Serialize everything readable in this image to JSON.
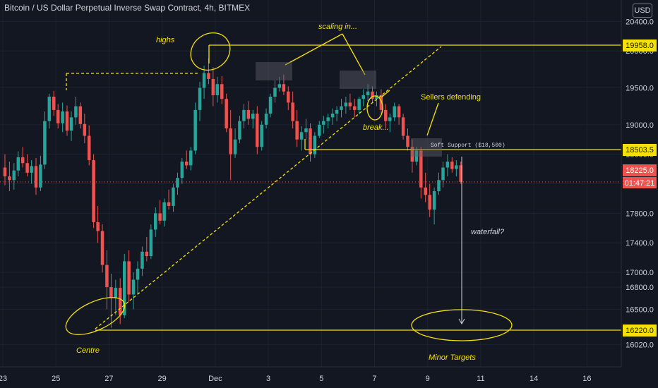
{
  "header": {
    "title": "Bitcoin / US Dollar Perpetual Inverse Swap Contract, 4h, BITMEX",
    "currency": "USD"
  },
  "colors": {
    "bg": "#131722",
    "up": "#26a69a",
    "down": "#ef5350",
    "annotation": "#f5e10a",
    "axis_text": "#d1d4dc",
    "grid": "#1e2230",
    "current_price": "#ef5350"
  },
  "chart_data": {
    "type": "candlestick",
    "title": "Bitcoin / US Dollar Perpetual Inverse Swap Contract, 4h, BITMEX",
    "xlabel": "",
    "ylabel": "",
    "ylim": [
      15720,
      20690
    ],
    "y_ticks": [
      20400,
      20000,
      19500,
      19000,
      18600,
      18200,
      17800,
      17400,
      17000,
      16800,
      16500,
      16020
    ],
    "y_tick_labels": [
      "20400.0",
      "20000.0",
      "19500.0",
      "19000.0",
      "18600.0",
      "18200.0",
      "17800.0",
      "17400.0",
      "17000.0",
      "16800.0",
      "16500.0",
      "16020.0"
    ],
    "x_ticks": [
      23,
      25,
      27,
      29,
      31,
      33,
      35,
      37,
      39,
      41,
      43,
      45
    ],
    "x_tick_labels": [
      "23",
      "25",
      "27",
      "29",
      "Dec",
      "3",
      "5",
      "7",
      "9",
      "11",
      "14",
      "16"
    ],
    "x_range": [
      23,
      46.4
    ],
    "ohlc_columns": [
      "day",
      "open",
      "high",
      "low",
      "close"
    ],
    "ohlc": [
      [
        23.08,
        18420,
        18600,
        18180,
        18300
      ],
      [
        23.25,
        18300,
        18500,
        18100,
        18250
      ],
      [
        23.42,
        18250,
        18480,
        18120,
        18380
      ],
      [
        23.58,
        18380,
        18640,
        18300,
        18560
      ],
      [
        23.75,
        18560,
        18700,
        18420,
        18480
      ],
      [
        23.92,
        18480,
        18600,
        18300,
        18350
      ],
      [
        24.08,
        18350,
        18520,
        18200,
        18440
      ],
      [
        24.25,
        18440,
        18550,
        18050,
        18150
      ],
      [
        24.42,
        18150,
        18580,
        18100,
        18460
      ],
      [
        24.58,
        18460,
        19180,
        18400,
        19050
      ],
      [
        24.75,
        19050,
        19420,
        18950,
        19380
      ],
      [
        24.92,
        19380,
        19460,
        19120,
        19200
      ],
      [
        25.08,
        19200,
        19280,
        18950,
        19020
      ],
      [
        25.25,
        19020,
        19300,
        18900,
        19180
      ],
      [
        25.42,
        19180,
        19260,
        18850,
        18920
      ],
      [
        25.58,
        18920,
        19180,
        18780,
        19100
      ],
      [
        25.75,
        19100,
        19380,
        19000,
        19250
      ],
      [
        25.92,
        19250,
        19300,
        18950,
        19010
      ],
      [
        26.08,
        19010,
        19150,
        18750,
        18850
      ],
      [
        26.25,
        18850,
        18990,
        18450,
        18520
      ],
      [
        26.42,
        18520,
        18600,
        17600,
        17680
      ],
      [
        26.58,
        17680,
        17900,
        17400,
        17560
      ],
      [
        26.75,
        17560,
        17650,
        17000,
        17100
      ],
      [
        26.92,
        17100,
        17300,
        16500,
        16800
      ],
      [
        27.08,
        16800,
        16980,
        16250,
        16650
      ],
      [
        27.25,
        16650,
        16900,
        16420,
        16790
      ],
      [
        27.42,
        16790,
        16920,
        16300,
        16420
      ],
      [
        27.58,
        16420,
        17250,
        16380,
        17150
      ],
      [
        27.75,
        17150,
        17300,
        16600,
        16700
      ],
      [
        27.92,
        16700,
        17000,
        16500,
        16900
      ],
      [
        28.08,
        16900,
        17150,
        16700,
        17050
      ],
      [
        28.25,
        17050,
        17350,
        16950,
        17280
      ],
      [
        28.42,
        17280,
        17480,
        17150,
        17220
      ],
      [
        28.58,
        17220,
        17650,
        17180,
        17580
      ],
      [
        28.75,
        17580,
        17880,
        17480,
        17800
      ],
      [
        28.92,
        17800,
        17980,
        17650,
        17700
      ],
      [
        29.08,
        17700,
        18000,
        17620,
        17950
      ],
      [
        29.25,
        17950,
        18120,
        17850,
        17900
      ],
      [
        29.42,
        17900,
        18200,
        17820,
        18150
      ],
      [
        29.58,
        18150,
        18350,
        18050,
        18280
      ],
      [
        29.75,
        18280,
        18550,
        18200,
        18500
      ],
      [
        29.92,
        18500,
        18650,
        18400,
        18450
      ],
      [
        30.08,
        18450,
        18700,
        18380,
        18650
      ],
      [
        30.25,
        18650,
        19300,
        18600,
        19200
      ],
      [
        30.42,
        19200,
        19580,
        19050,
        19500
      ],
      [
        30.58,
        19500,
        19800,
        19350,
        19700
      ],
      [
        30.75,
        19700,
        19900,
        19550,
        19620
      ],
      [
        30.92,
        19620,
        19780,
        19250,
        19400
      ],
      [
        31.08,
        19400,
        19650,
        19300,
        19550
      ],
      [
        31.25,
        19550,
        19660,
        19280,
        19350
      ],
      [
        31.42,
        19350,
        19420,
        18900,
        18950
      ],
      [
        31.58,
        18950,
        19200,
        18250,
        18600
      ],
      [
        31.75,
        18600,
        18950,
        18550,
        18800
      ],
      [
        31.92,
        18800,
        19120,
        18750,
        19050
      ],
      [
        32.08,
        19050,
        19280,
        18950,
        19200
      ],
      [
        32.25,
        19200,
        19320,
        19000,
        19080
      ],
      [
        32.42,
        19080,
        19200,
        18950,
        19150
      ],
      [
        32.58,
        19150,
        19250,
        18600,
        18700
      ],
      [
        32.75,
        18700,
        19050,
        18650,
        19000
      ],
      [
        32.92,
        19000,
        19220,
        18950,
        19150
      ],
      [
        33.08,
        19150,
        19420,
        19100,
        19380
      ],
      [
        33.25,
        19380,
        19600,
        19300,
        19500
      ],
      [
        33.42,
        19500,
        19650,
        19450,
        19550
      ],
      [
        33.58,
        19550,
        19680,
        19400,
        19450
      ],
      [
        33.75,
        19450,
        19520,
        19200,
        19300
      ],
      [
        33.92,
        19300,
        19450,
        18950,
        19050
      ],
      [
        34.08,
        19050,
        19200,
        18700,
        18800
      ],
      [
        34.25,
        18800,
        18980,
        18650,
        18900
      ],
      [
        34.42,
        18900,
        19080,
        18800,
        18950
      ],
      [
        34.58,
        18950,
        19020,
        18500,
        18600
      ],
      [
        34.75,
        18600,
        18900,
        18550,
        18850
      ],
      [
        34.92,
        18850,
        19050,
        18820,
        19000
      ],
      [
        35.08,
        19000,
        19120,
        18880,
        19050
      ],
      [
        35.25,
        19050,
        19150,
        18950,
        19100
      ],
      [
        35.42,
        19100,
        19220,
        19000,
        19150
      ],
      [
        35.58,
        19150,
        19250,
        19050,
        19200
      ],
      [
        35.75,
        19200,
        19350,
        19100,
        19250
      ],
      [
        35.92,
        19250,
        19380,
        19150,
        19300
      ],
      [
        36.08,
        19300,
        19420,
        19200,
        19250
      ],
      [
        36.25,
        19250,
        19350,
        19100,
        19200
      ],
      [
        36.42,
        19200,
        19380,
        19150,
        19350
      ],
      [
        36.58,
        19350,
        19480,
        19250,
        19400
      ],
      [
        36.75,
        19400,
        19550,
        19320,
        19450
      ],
      [
        36.92,
        19450,
        19520,
        19300,
        19350
      ],
      [
        37.08,
        19350,
        19450,
        19250,
        19400
      ],
      [
        37.25,
        19400,
        19480,
        19150,
        19200
      ],
      [
        37.42,
        19200,
        19280,
        18950,
        19050
      ],
      [
        37.58,
        19050,
        19150,
        18900,
        19100
      ],
      [
        37.75,
        19100,
        19300,
        19050,
        19250
      ],
      [
        37.92,
        19250,
        19280,
        19000,
        19100
      ],
      [
        38.08,
        19100,
        19150,
        18800,
        18850
      ],
      [
        38.25,
        18850,
        18950,
        18650,
        18700
      ],
      [
        38.42,
        18700,
        18800,
        18350,
        18500
      ],
      [
        38.58,
        18500,
        18700,
        18450,
        18650
      ],
      [
        38.75,
        18650,
        18700,
        18000,
        18150
      ],
      [
        38.92,
        18150,
        18350,
        17950,
        18050
      ],
      [
        39.08,
        18050,
        18200,
        17750,
        17850
      ],
      [
        39.25,
        17850,
        18150,
        17650,
        18100
      ],
      [
        39.42,
        18100,
        18350,
        18050,
        18250
      ],
      [
        39.58,
        18250,
        18500,
        18150,
        18420
      ],
      [
        39.75,
        18420,
        18600,
        18300,
        18500
      ],
      [
        39.92,
        18500,
        18560,
        18350,
        18400
      ],
      [
        40.08,
        18400,
        18520,
        18300,
        18450
      ],
      [
        40.25,
        18450,
        18500,
        18200,
        18225
      ]
    ],
    "current_price": 18225.0,
    "current_price_label": "18225.0",
    "countdown": "01:47:21",
    "levels": [
      {
        "price": 19958.0,
        "label": "19958.0"
      },
      {
        "price": 18503.5,
        "label": "18503.5"
      },
      {
        "price": 16220.0,
        "label": "16220.0"
      }
    ],
    "annotations": {
      "highs": "highs",
      "scaling_in": "scaling in...",
      "sellers_defending": "Sellers defending",
      "break": "break...",
      "soft_support": "Soft Support ($18,500)",
      "waterfall": "waterfall?",
      "centre": "Centre",
      "minor_targets": "Minor Targets"
    }
  }
}
